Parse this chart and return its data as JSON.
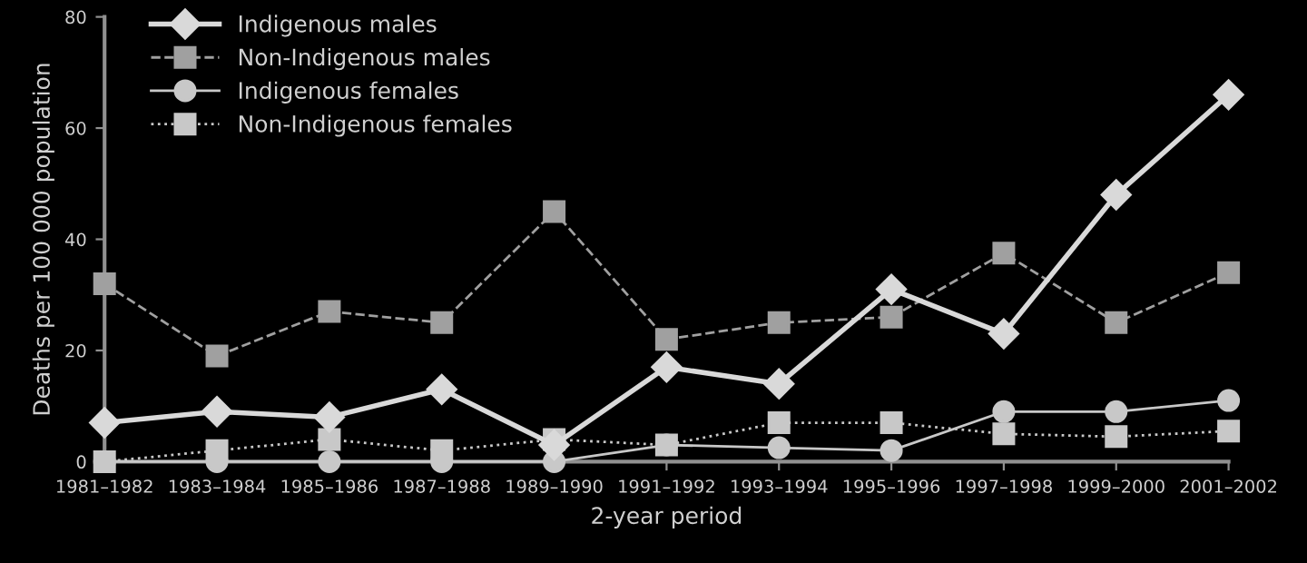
{
  "chart_data": {
    "type": "line",
    "categories": [
      "1981–1982",
      "1983–1984",
      "1985–1986",
      "1987–1988",
      "1989–1990",
      "1991–1992",
      "1993–1994",
      "1995–1996",
      "1997–1998",
      "1999–2000",
      "2001–2002"
    ],
    "series": [
      {
        "name": "Indigenous males",
        "color": "#d9d9d9",
        "marker": "diamond",
        "line_style": "solid",
        "values": [
          7,
          9,
          8,
          13,
          3,
          17,
          14,
          31,
          23,
          48,
          66
        ]
      },
      {
        "name": "Non-Indigenous males",
        "color": "#a0a0a0",
        "marker": "square",
        "line_style": "dashed",
        "values": [
          32,
          19,
          27,
          25,
          45,
          22,
          25,
          26,
          37.5,
          25,
          34
        ]
      },
      {
        "name": "Indigenous females",
        "color": "#c8c8c8",
        "marker": "circle",
        "line_style": "solid",
        "values": [
          0,
          0,
          0,
          0,
          0,
          3,
          2.5,
          2,
          9,
          9,
          11
        ]
      },
      {
        "name": "Non-Indigenous females",
        "color": "#c8c8c8",
        "marker": "square",
        "line_style": "dotted",
        "values": [
          0,
          2,
          4,
          2,
          4,
          3,
          7,
          7,
          5,
          4.5,
          5.5
        ]
      }
    ],
    "xlabel": "2-year period",
    "ylabel": "Deaths per 100 000 population",
    "ylim": [
      0,
      80
    ],
    "yticks": [
      0,
      20,
      40,
      60,
      80
    ],
    "grid": false,
    "legend": "top left"
  }
}
